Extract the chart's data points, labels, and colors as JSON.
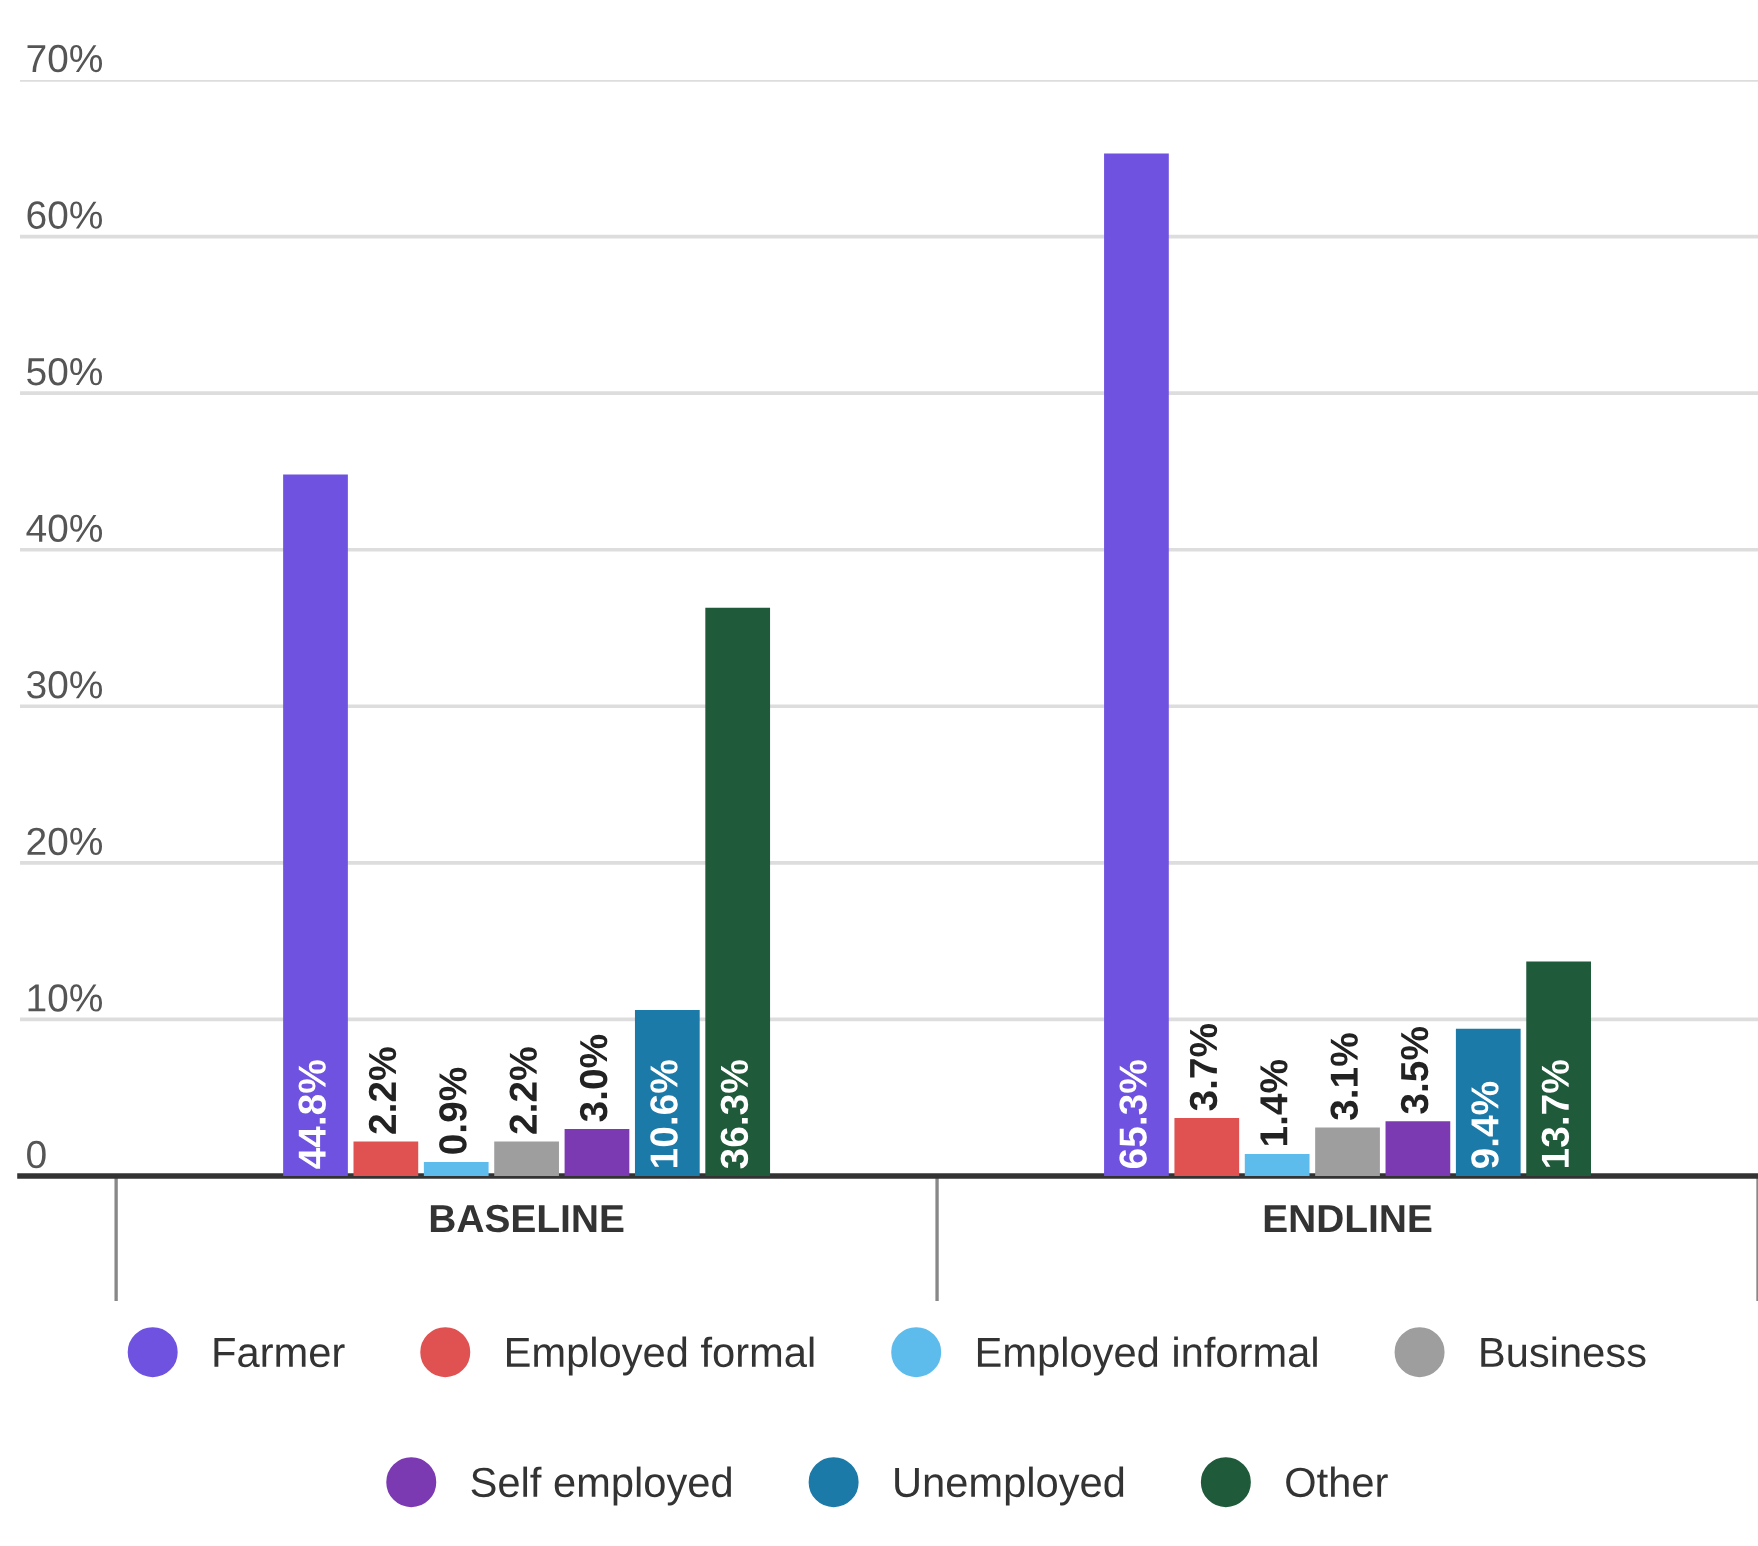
{
  "chart_data": {
    "type": "bar",
    "categories": [
      "BASELINE",
      "ENDLINE"
    ],
    "series": [
      {
        "name": "Farmer",
        "color": "#6f52e0",
        "values": [
          44.8,
          65.3
        ]
      },
      {
        "name": "Employed formal",
        "color": "#e05252",
        "values": [
          2.2,
          3.7
        ]
      },
      {
        "name": "Employed informal",
        "color": "#5ebcec",
        "values": [
          0.9,
          1.4
        ]
      },
      {
        "name": "Business",
        "color": "#9e9e9e",
        "values": [
          2.2,
          3.1
        ]
      },
      {
        "name": "Self employed",
        "color": "#7b3ab2",
        "values": [
          3.0,
          3.5
        ]
      },
      {
        "name": "Unemployed",
        "color": "#1b7aa8",
        "values": [
          10.6,
          9.4
        ]
      },
      {
        "name": "Other",
        "color": "#1f5a3a",
        "values": [
          36.3,
          13.7
        ]
      }
    ],
    "value_labels": [
      [
        "44.8%",
        "65.3%"
      ],
      [
        "2.2%",
        "3.7%"
      ],
      [
        "0.9%",
        "1.4%"
      ],
      [
        "2.2%",
        "3.1%"
      ],
      [
        "3.0%",
        "3.5%"
      ],
      [
        "10.6%",
        "9.4%"
      ],
      [
        "36.3%",
        "13.7%"
      ]
    ],
    "ylim": [
      0,
      70
    ],
    "yticks": [
      {
        "value": 0,
        "label": "0"
      },
      {
        "value": 10,
        "label": "10%"
      },
      {
        "value": 20,
        "label": "20%"
      },
      {
        "value": 30,
        "label": "30%"
      },
      {
        "value": 40,
        "label": "40%"
      },
      {
        "value": 50,
        "label": "50%"
      },
      {
        "value": 60,
        "label": "60%"
      },
      {
        "value": 70,
        "label": "70%"
      }
    ],
    "grid": "y",
    "legend": "bottom"
  }
}
